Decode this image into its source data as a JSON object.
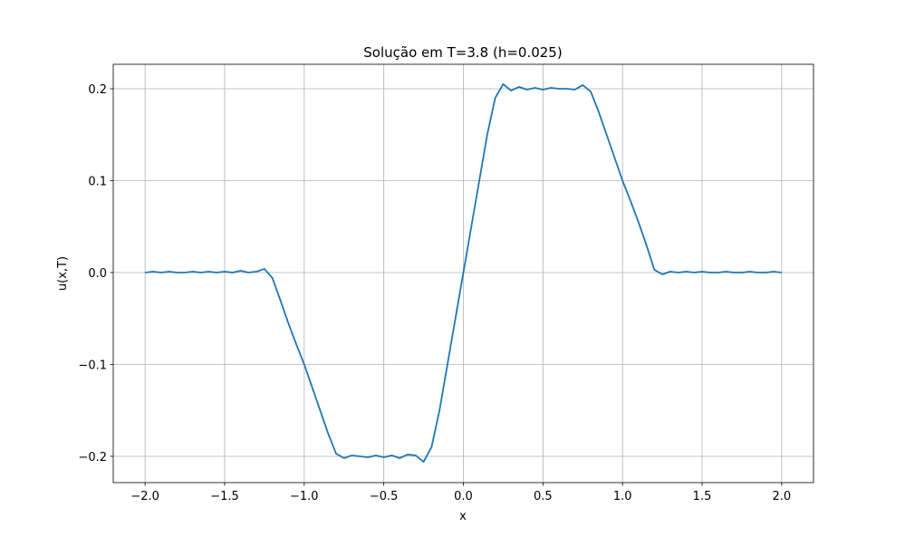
{
  "chart_data": {
    "type": "line",
    "title": "Solução em T=3.8 (h=0.025)",
    "xlabel": "x",
    "ylabel": "u(x,T)",
    "x": [
      -2,
      -1.95,
      -1.9,
      -1.85,
      -1.8,
      -1.75,
      -1.7,
      -1.65,
      -1.6,
      -1.55,
      -1.5,
      -1.45,
      -1.4,
      -1.35,
      -1.3,
      -1.25,
      -1.2,
      -1.15,
      -1.1,
      -1.05,
      -1,
      -0.95,
      -0.9,
      -0.85,
      -0.8,
      -0.75,
      -0.7,
      -0.65,
      -0.6,
      -0.55,
      -0.5,
      -0.45,
      -0.4,
      -0.35,
      -0.3,
      -0.25,
      -0.2,
      -0.15,
      -0.1,
      -0.05,
      0,
      0.05,
      0.1,
      0.15,
      0.2,
      0.25,
      0.3,
      0.35,
      0.4,
      0.45,
      0.5,
      0.55,
      0.6,
      0.65,
      0.7,
      0.75,
      0.8,
      0.85,
      0.9,
      0.95,
      1,
      1.05,
      1.1,
      1.15,
      1.2,
      1.25,
      1.3,
      1.35,
      1.4,
      1.45,
      1.5,
      1.55,
      1.6,
      1.65,
      1.7,
      1.75,
      1.8,
      1.85,
      1.9,
      1.95,
      2
    ],
    "series": [
      {
        "color": "#1f77b4",
        "values": [
          0,
          0.001,
          0,
          0.001,
          0,
          0,
          0.001,
          0,
          0.001,
          0,
          0.001,
          0,
          0.002,
          0,
          0.001,
          0.004,
          -0.006,
          -0.03,
          -0.055,
          -0.078,
          -0.1,
          -0.125,
          -0.15,
          -0.175,
          -0.197,
          -0.202,
          -0.199,
          -0.2,
          -0.201,
          -0.199,
          -0.201,
          -0.199,
          -0.202,
          -0.198,
          -0.199,
          -0.206,
          -0.19,
          -0.15,
          -0.1,
          -0.05,
          0,
          0.05,
          0.1,
          0.15,
          0.19,
          0.205,
          0.198,
          0.202,
          0.199,
          0.201,
          0.199,
          0.201,
          0.2,
          0.2,
          0.199,
          0.204,
          0.197,
          0.175,
          0.15,
          0.125,
          0.1,
          0.078,
          0.055,
          0.03,
          0.003,
          -0.002,
          0.001,
          0,
          0.001,
          0,
          0.001,
          0,
          0,
          0.001,
          0,
          0,
          0.001,
          0,
          0,
          0.001,
          0
        ]
      }
    ],
    "xlim": [
      -2.2,
      2.2
    ],
    "ylim": [
      -0.2286,
      0.2266
    ],
    "xticks": [
      {
        "value": -2,
        "label": "−2.0"
      },
      {
        "value": -1.5,
        "label": "−1.5"
      },
      {
        "value": -1,
        "label": "−1.0"
      },
      {
        "value": -0.5,
        "label": "−0.5"
      },
      {
        "value": 0,
        "label": "0.0"
      },
      0.5,
      {
        "value": 1,
        "label": "1.0"
      },
      1.5,
      {
        "value": 2,
        "label": "2.0"
      }
    ],
    "yticks": [
      {
        "value": -0.2,
        "label": "−0.2"
      },
      {
        "value": -0.1,
        "label": "−0.1"
      },
      {
        "value": 0,
        "label": "0.0"
      },
      0.1,
      0.2
    ],
    "grid": true
  }
}
